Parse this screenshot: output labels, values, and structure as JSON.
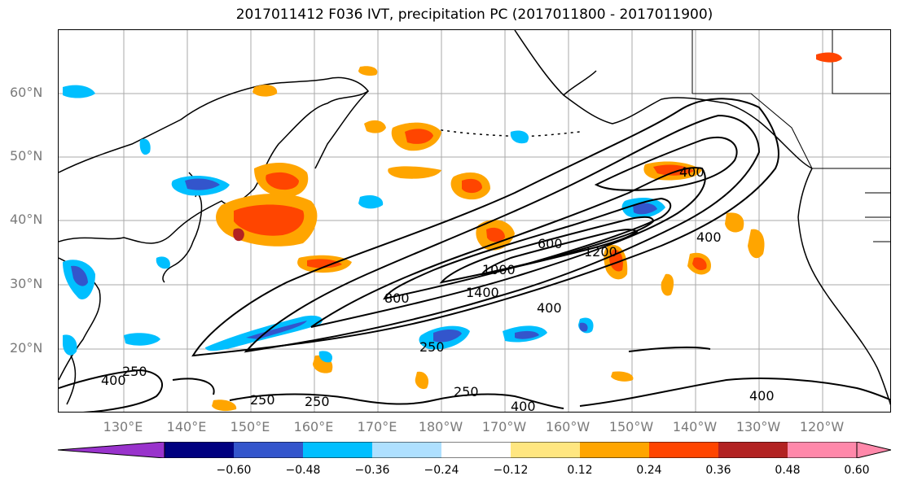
{
  "title": "2017011412 F036 IVT, precipitation PC (2017011800 - 2017011900)",
  "map": {
    "lat_labels": [
      "60°N",
      "50°N",
      "40°N",
      "30°N",
      "20°N"
    ],
    "lon_labels": [
      "130°E",
      "140°E",
      "150°E",
      "160°E",
      "170°E",
      "180°W",
      "170°W",
      "160°W",
      "150°W",
      "140°W",
      "130°W",
      "120°W"
    ],
    "contour_labels": [
      "250",
      "400",
      "250",
      "400",
      "800",
      "1000",
      "1400",
      "600",
      "1200",
      "400",
      "400",
      "250",
      "250",
      "400",
      "400",
      "250"
    ],
    "colors": {
      "land_outline": "#000000",
      "grid": "#aaaaaa",
      "contour": "#000000"
    }
  },
  "colorbar": {
    "ticks": [
      "−0.60",
      "−0.48",
      "−0.36",
      "−0.24",
      "−0.12",
      "0.12",
      "0.24",
      "0.36",
      "0.48",
      "0.60"
    ],
    "colors": [
      "#9933cc",
      "#000080",
      "#3355cc",
      "#00bfff",
      "#aee0ff",
      "#ffffff",
      "#ffe680",
      "#ffa500",
      "#ff4500",
      "#b22222",
      "#ff88aa"
    ]
  }
}
